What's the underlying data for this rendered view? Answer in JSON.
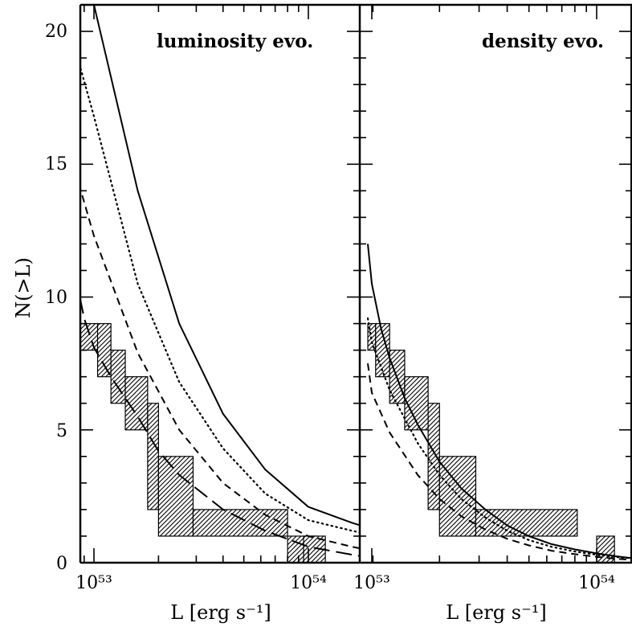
{
  "chart_data": [
    {
      "type": "line",
      "title": "luminosity evo.",
      "xlabel": "L [erg s⁻¹]",
      "ylabel": "N(>L)",
      "xscale": "log",
      "xlim": [
        8.2e+52,
        2.1e+54
      ],
      "ylim": [
        0,
        21
      ],
      "x_tick_labels": [
        "10⁵³",
        "10⁵⁴"
      ],
      "y_tick_labels": [
        "0",
        "5",
        "10",
        "15",
        "20"
      ],
      "series": [
        {
          "style": "solid",
          "x": [
            1e+53,
            1.6e+53,
            2.5e+53,
            4e+53,
            6.3e+53,
            1e+54,
            1.6e+54,
            2.1e+54
          ],
          "y": [
            21.0,
            14.0,
            9.0,
            5.6,
            3.5,
            2.1,
            1.5,
            1.2
          ]
        },
        {
          "style": "dotted",
          "x": [
            8.2e+52,
            1e+53,
            1.6e+53,
            2.5e+53,
            4e+53,
            6.3e+53,
            1e+54,
            1.6e+54,
            2.1e+54
          ],
          "y": [
            19.3,
            16.8,
            10.5,
            6.8,
            4.3,
            2.6,
            1.6,
            1.2,
            1.0
          ]
        },
        {
          "style": "short-dashed",
          "x": [
            8.2e+52,
            1e+53,
            1.6e+53,
            2.5e+53,
            4e+53,
            6.3e+53,
            1e+54,
            1.6e+54,
            2.1e+54
          ],
          "y": [
            14.7,
            12.3,
            7.9,
            5.0,
            3.0,
            1.8,
            1.0,
            0.6,
            0.4
          ]
        },
        {
          "style": "long-dashed",
          "x": [
            8.2e+52,
            9e+52,
            1e+53,
            1.2e+53,
            1.6e+53,
            2e+53,
            2.5e+53,
            4e+53,
            6.3e+53,
            1e+54,
            1.6e+54,
            2.1e+54
          ],
          "y": [
            10.8,
            9.2,
            8.1,
            7.0,
            5.5,
            4.2,
            3.3,
            2.0,
            1.2,
            0.6,
            0.3,
            0.15
          ]
        }
      ],
      "observed_band": [
        {
          "x0": 8.2e+52,
          "x1": 1.04e+53,
          "ylo": 8,
          "yhi": 9
        },
        {
          "x0": 1.04e+53,
          "x1": 1.2e+53,
          "ylo": 7,
          "yhi": 9
        },
        {
          "x0": 1.2e+53,
          "x1": 1.4e+53,
          "ylo": 6,
          "yhi": 8
        },
        {
          "x0": 1.4e+53,
          "x1": 1.78e+53,
          "ylo": 5,
          "yhi": 7
        },
        {
          "x0": 1.78e+53,
          "x1": 2e+53,
          "ylo": 2,
          "yhi": 6
        },
        {
          "x0": 2e+53,
          "x1": 2.9e+53,
          "ylo": 1,
          "yhi": 4
        },
        {
          "x0": 2.9e+53,
          "x1": 8e+53,
          "ylo": 1,
          "yhi": 2
        },
        {
          "x0": 8e+53,
          "x1": 1.1e+54,
          "ylo": 0,
          "yhi": 1
        },
        {
          "x0": 9.5e+53,
          "x1": 1.2e+54,
          "ylo": 0,
          "yhi": 1
        }
      ]
    },
    {
      "type": "line",
      "title": "density evo.",
      "xlabel": "L [erg s⁻¹]",
      "xscale": "log",
      "xlim": [
        9.6e+52,
        1.5e+54
      ],
      "ylim": [
        0,
        21
      ],
      "x_tick_labels": [
        "10⁵³",
        "10⁵⁴"
      ],
      "series": [
        {
          "style": "solid",
          "x": [
            9.6e+52,
            1e+53,
            1.1e+53,
            1.2e+53,
            1.4e+53,
            1.6e+53,
            2e+53,
            2.5e+53,
            3.2e+53,
            4e+53,
            5e+53,
            6.3e+53,
            8e+53,
            1e+54,
            1.2e+54,
            1.5e+54
          ],
          "y": [
            12.0,
            10.5,
            8.8,
            7.7,
            6.2,
            5.2,
            3.8,
            2.8,
            2.0,
            1.4,
            1.0,
            0.7,
            0.5,
            0.35,
            0.25,
            0.15
          ]
        },
        {
          "style": "dotted",
          "x": [
            9.6e+52,
            1e+53,
            1.2e+53,
            1.6e+53,
            2e+53,
            2.5e+53,
            3.2e+53,
            4e+53,
            5e+53,
            6.3e+53,
            8e+53,
            1e+54,
            1.2e+54,
            1.5e+54
          ],
          "y": [
            9.2,
            8.3,
            6.5,
            4.5,
            3.3,
            2.4,
            1.7,
            1.2,
            0.85,
            0.6,
            0.42,
            0.3,
            0.22,
            0.15
          ]
        },
        {
          "style": "short-dashed",
          "x": [
            9.6e+52,
            1e+53,
            1.2e+53,
            1.6e+53,
            2e+53,
            2.5e+53,
            3.2e+53,
            4e+53,
            5e+53,
            6.3e+53,
            8e+53,
            1e+54,
            1.2e+54,
            1.5e+54
          ],
          "y": [
            7.5,
            6.4,
            4.9,
            3.3,
            2.4,
            1.75,
            1.25,
            0.9,
            0.65,
            0.45,
            0.32,
            0.22,
            0.15,
            0.1
          ]
        }
      ],
      "observed_band": [
        {
          "x0": 9.6e+52,
          "x1": 1.04e+53,
          "ylo": 8,
          "yhi": 9
        },
        {
          "x0": 1.04e+53,
          "x1": 1.2e+53,
          "ylo": 7,
          "yhi": 9
        },
        {
          "x0": 1.2e+53,
          "x1": 1.4e+53,
          "ylo": 6,
          "yhi": 8
        },
        {
          "x0": 1.4e+53,
          "x1": 1.78e+53,
          "ylo": 5,
          "yhi": 7
        },
        {
          "x0": 1.78e+53,
          "x1": 2e+53,
          "ylo": 2,
          "yhi": 6
        },
        {
          "x0": 2e+53,
          "x1": 2.9e+53,
          "ylo": 1,
          "yhi": 4
        },
        {
          "x0": 2.9e+53,
          "x1": 8.2e+53,
          "ylo": 1,
          "yhi": 2
        },
        {
          "x0": 1e+54,
          "x1": 1.2e+54,
          "ylo": 0,
          "yhi": 1
        }
      ]
    }
  ]
}
